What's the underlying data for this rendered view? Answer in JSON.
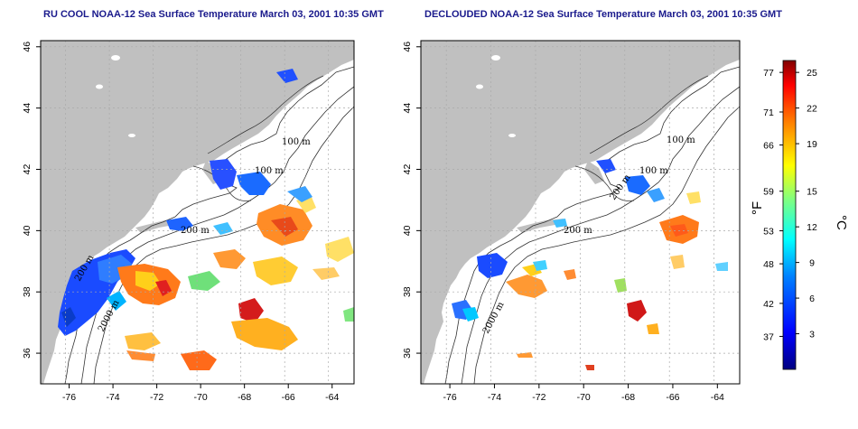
{
  "panels": [
    {
      "title": "RU COOL NOAA-12 Sea Surface Temperature March 03, 2001 10:35 GMT",
      "contour_labels": [
        "100 m",
        "100 m",
        "200 m",
        "200 m",
        "2000 m"
      ]
    },
    {
      "title": "DECLOUDED NOAA-12 Sea Surface Temperature March 03, 2001 10:35 GMT",
      "contour_labels": [
        "100 m",
        "100 m",
        "200 m",
        "200 m",
        "2000 m"
      ]
    }
  ],
  "axes": {
    "x_ticks": [
      "-76",
      "-74",
      "-72",
      "-70",
      "-68",
      "-66",
      "-64"
    ],
    "y_ticks": [
      "36",
      "38",
      "40",
      "42",
      "44",
      "46"
    ],
    "x_values": [
      -76,
      -74,
      -72,
      -70,
      -68,
      -66,
      -64
    ],
    "y_values": [
      36,
      38,
      40,
      42,
      44,
      46
    ],
    "lon_range": [
      -77.3,
      -63.0
    ],
    "lat_range": [
      35.0,
      46.2
    ],
    "grid": "dotted"
  },
  "colorbar": {
    "fahrenheit_label": "°F",
    "celsius_label": "°C",
    "fahrenheit_ticks": [
      "77",
      "71",
      "66",
      "59",
      "53",
      "48",
      "42",
      "37"
    ],
    "celsius_ticks": [
      "25",
      "22",
      "19",
      "15",
      "12",
      "9",
      "6",
      "3"
    ],
    "range_c": [
      0,
      26
    ],
    "colors": [
      "#000080",
      "#0000ff",
      "#0080ff",
      "#00ffff",
      "#80ff80",
      "#ffff00",
      "#ff8000",
      "#ff0000",
      "#800000"
    ]
  },
  "colors": {
    "land": "#c0c0c0",
    "ocean": "#ffffff",
    "title": "#1a1a8c"
  }
}
